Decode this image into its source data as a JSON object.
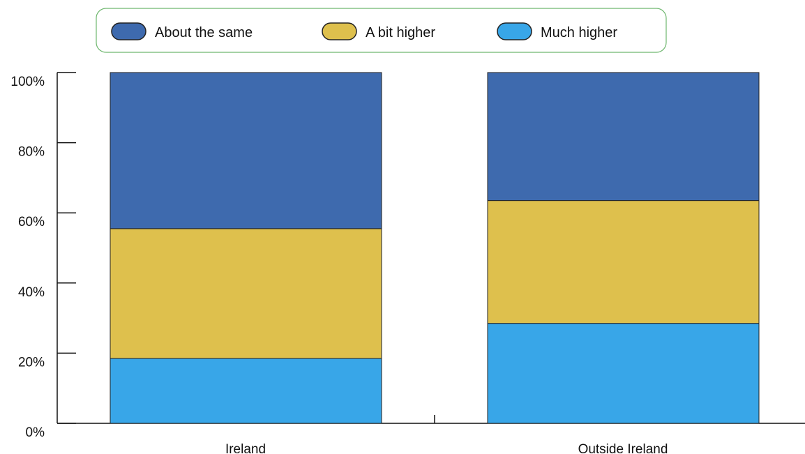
{
  "chart_data": {
    "type": "bar",
    "stacked": true,
    "percent": true,
    "categories": [
      "Ireland",
      "Outside Ireland"
    ],
    "series": [
      {
        "name": "Much higher",
        "values": [
          18.5,
          28.5
        ],
        "color": "#38a6e8"
      },
      {
        "name": "A bit higher",
        "values": [
          37,
          35
        ],
        "color": "#dec04d"
      },
      {
        "name": "About the same",
        "values": [
          44.5,
          36.5
        ],
        "color": "#3e6aae"
      }
    ],
    "legend_order": [
      "About the same",
      "A bit higher",
      "Much higher"
    ],
    "legend_position": "top-center",
    "ylim": [
      0,
      100
    ],
    "yticks": [
      "0%",
      "20%",
      "40%",
      "60%",
      "80%",
      "100%"
    ],
    "grid": false,
    "title": "",
    "xlabel": "",
    "ylabel": ""
  },
  "colors": {
    "legend_border": "#6fb76f",
    "axis": "#111111",
    "bar_edge": "#222222"
  }
}
